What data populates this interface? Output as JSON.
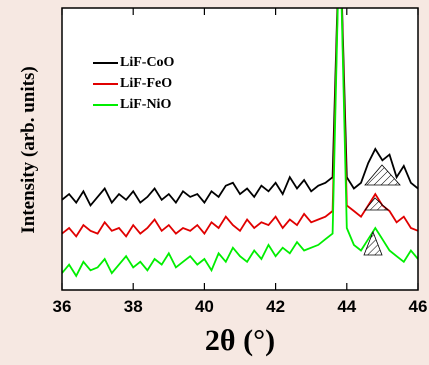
{
  "chart_data": {
    "type": "line",
    "x_label": "2θ (°)",
    "y_label": "Intensity (arb. units)",
    "x": [
      36,
      36.2,
      36.4,
      36.6,
      36.8,
      37,
      37.2,
      37.4,
      37.6,
      37.8,
      38,
      38.2,
      38.4,
      38.6,
      38.8,
      39,
      39.2,
      39.4,
      39.6,
      39.8,
      40,
      40.2,
      40.4,
      40.6,
      40.8,
      41,
      41.2,
      41.4,
      41.6,
      41.8,
      42,
      42.2,
      42.4,
      42.6,
      42.8,
      43,
      43.2,
      43.4,
      43.6,
      43.8,
      44,
      44.2,
      44.4,
      44.6,
      44.8,
      45,
      45.2,
      45.4,
      45.6,
      45.8,
      46
    ],
    "series": [
      {
        "name": "LiF-CoO",
        "color": "#000000",
        "values": [
          32,
          34,
          31,
          35,
          30,
          33,
          36,
          31,
          34,
          32,
          35,
          31,
          33,
          36,
          32,
          34,
          31,
          35,
          33,
          34,
          31,
          35,
          33,
          37,
          38,
          34,
          36,
          33,
          37,
          35,
          38,
          34,
          40,
          36,
          39,
          35,
          37,
          38,
          40,
          130,
          40,
          36,
          38,
          45,
          50,
          46,
          48,
          40,
          44,
          38,
          36
        ]
      },
      {
        "name": "LiF-FeO",
        "color": "#e00000",
        "values": [
          20,
          22,
          19,
          23,
          21,
          20,
          24,
          21,
          22,
          19,
          23,
          20,
          22,
          25,
          21,
          23,
          20,
          22,
          21,
          23,
          20,
          24,
          22,
          26,
          23,
          21,
          25,
          22,
          24,
          23,
          26,
          22,
          25,
          23,
          27,
          24,
          25,
          26,
          28,
          130,
          30,
          28,
          26,
          30,
          34,
          30,
          28,
          24,
          26,
          22,
          21
        ]
      },
      {
        "name": "LiF-NiO",
        "color": "#00ee00",
        "values": [
          6,
          9,
          5,
          10,
          7,
          8,
          11,
          6,
          9,
          12,
          8,
          10,
          7,
          11,
          9,
          13,
          8,
          10,
          12,
          9,
          11,
          7,
          13,
          10,
          15,
          12,
          10,
          14,
          11,
          16,
          12,
          15,
          13,
          17,
          14,
          15,
          16,
          18,
          20,
          130,
          22,
          16,
          14,
          18,
          22,
          18,
          14,
          12,
          10,
          14,
          11
        ]
      }
    ],
    "xlim": [
      36,
      46
    ],
    "xticks": [
      36,
      38,
      40,
      42,
      44,
      46
    ],
    "ylim": [
      0,
      100
    ]
  }
}
